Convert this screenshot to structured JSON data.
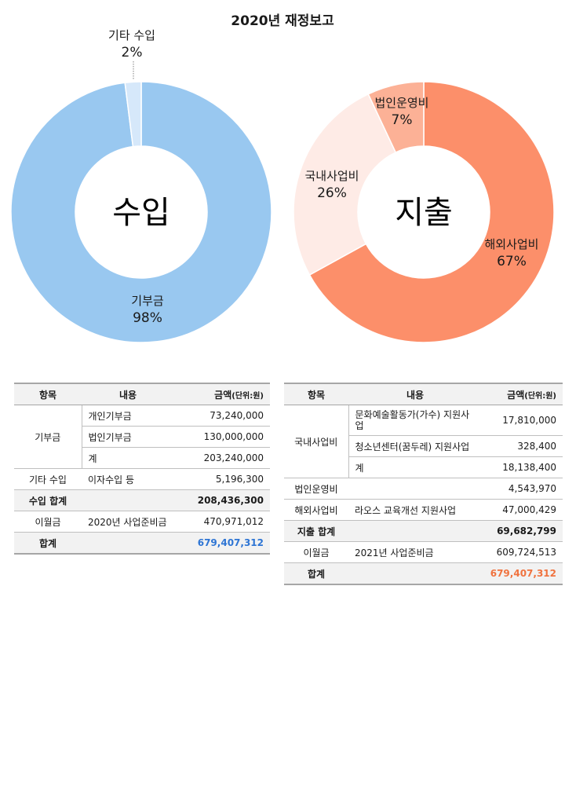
{
  "title": "2020년 재정보고",
  "chart_data": [
    {
      "type": "pie",
      "center_label": "수입",
      "slices": [
        {
          "label": "기부금",
          "value": 98,
          "display": "98%",
          "color": "#99c8f0"
        },
        {
          "label": "기타 수입",
          "value": 2,
          "display": "2%",
          "color": "#d6e8fa"
        }
      ]
    },
    {
      "type": "pie",
      "center_label": "지출",
      "slices": [
        {
          "label": "해외사업비",
          "value": 67,
          "display": "67%",
          "color": "#fc8f6a"
        },
        {
          "label": "국내사업비",
          "value": 26,
          "display": "26%",
          "color": "#feebe6"
        },
        {
          "label": "법인운영비",
          "value": 7,
          "display": "7%",
          "color": "#fcb196"
        }
      ]
    }
  ],
  "headers": {
    "item": "항목",
    "content": "내용",
    "amount": "금액",
    "unit": "(단위:원)"
  },
  "income_table": {
    "donation": {
      "category": "기부금",
      "rows": [
        {
          "content": "개인기부금",
          "amount": "73,240,000"
        },
        {
          "content": "법인기부금",
          "amount": "130,000,000"
        },
        {
          "content": "계",
          "amount": "203,240,000"
        }
      ]
    },
    "other": {
      "category": "기타 수입",
      "content": "이자수입 등",
      "amount": "5,196,300"
    },
    "subtotal": {
      "label": "수입 합계",
      "amount": "208,436,300"
    },
    "carry": {
      "category": "이월금",
      "content": "2020년 사업준비금",
      "amount": "470,971,012"
    },
    "total": {
      "label": "합계",
      "amount": "679,407,312"
    }
  },
  "expense_table": {
    "domestic": {
      "category": "국내사업비",
      "rows": [
        {
          "content": "문화예술활동가(가수) 지원사업",
          "amount": "17,810,000"
        },
        {
          "content": "청소년센터(꿈두레) 지원사업",
          "amount": "328,400"
        },
        {
          "content": "계",
          "amount": "18,138,400"
        }
      ]
    },
    "corporate": {
      "category": "법인운영비",
      "content": "",
      "amount": "4,543,970"
    },
    "overseas": {
      "category": "해외사업비",
      "content": "라오스 교육개선 지원사업",
      "amount": "47,000,429"
    },
    "subtotal": {
      "label": "지출 합계",
      "amount": "69,682,799"
    },
    "carry": {
      "category": "이월금",
      "content": "2021년 사업준비금",
      "amount": "609,724,513"
    },
    "total": {
      "label": "합계",
      "amount": "679,407,312"
    }
  }
}
